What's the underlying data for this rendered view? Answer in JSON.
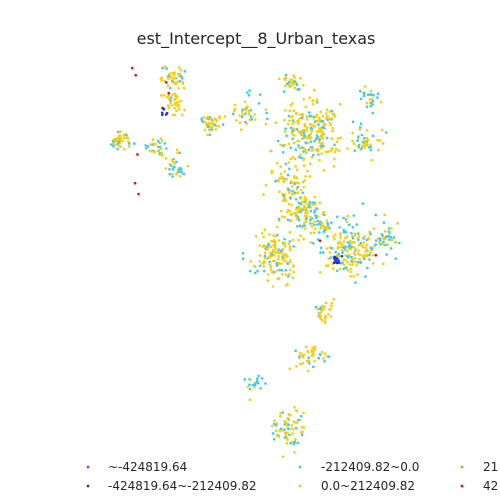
{
  "chart_data": {
    "type": "scatter",
    "title": "est_Intercept__8_Urban_texas",
    "xlabel": "",
    "ylabel": "",
    "grid": false,
    "axes_visible": false,
    "legend_placement": "bottom",
    "legend": [
      {
        "label": "~-424819.64",
        "color": "#9b30ff"
      },
      {
        "label": "-424819.64~-212409.82",
        "color": "#2b2bd9"
      },
      {
        "label": "-212409.82~0.0",
        "color": "#33ccff"
      },
      {
        "label": "0.0~212409.82",
        "color": "#ffcc00"
      },
      {
        "label": "21",
        "color": "#ff8c1a"
      },
      {
        "label": "42",
        "color": "#ff0000"
      }
    ],
    "clusters": [
      {
        "cx": 0.118,
        "cy": 0.8,
        "r": 0.025,
        "n": 40,
        "yellow": 0.7
      },
      {
        "cx": 0.222,
        "cy": 0.78,
        "r": 0.028,
        "n": 30,
        "yellow": 0.7
      },
      {
        "cx": 0.272,
        "cy": 0.725,
        "r": 0.03,
        "n": 30,
        "yellow": 0.6
      },
      {
        "cx": 0.378,
        "cy": 0.848,
        "r": 0.03,
        "n": 40,
        "yellow": 0.6
      },
      {
        "cx": 0.268,
        "cy": 0.975,
        "r": 0.04,
        "n": 45,
        "yellow": 0.8
      },
      {
        "cx": 0.27,
        "cy": 0.9,
        "r": 0.025,
        "n": 30,
        "yellow": 0.9
      },
      {
        "cx": 0.48,
        "cy": 0.88,
        "r": 0.04,
        "n": 40,
        "yellow": 0.6
      },
      {
        "cx": 0.61,
        "cy": 0.96,
        "r": 0.022,
        "n": 25,
        "yellow": 0.7
      },
      {
        "cx": 0.66,
        "cy": 0.82,
        "r": 0.08,
        "n": 240,
        "yellow": 0.7
      },
      {
        "cx": 0.82,
        "cy": 0.79,
        "r": 0.035,
        "n": 45,
        "yellow": 0.6
      },
      {
        "cx": 0.83,
        "cy": 0.92,
        "r": 0.03,
        "n": 25,
        "yellow": 0.4
      },
      {
        "cx": 0.595,
        "cy": 0.68,
        "r": 0.05,
        "n": 60,
        "yellow": 0.8
      },
      {
        "cx": 0.64,
        "cy": 0.6,
        "r": 0.06,
        "n": 120,
        "yellow": 0.7
      },
      {
        "cx": 0.56,
        "cy": 0.48,
        "r": 0.06,
        "n": 140,
        "yellow": 0.75
      },
      {
        "cx": 0.78,
        "cy": 0.5,
        "r": 0.07,
        "n": 180,
        "yellow": 0.6
      },
      {
        "cx": 0.7,
        "cy": 0.56,
        "r": 0.025,
        "n": 25,
        "yellow": 0.5
      },
      {
        "cx": 0.88,
        "cy": 0.52,
        "r": 0.035,
        "n": 40,
        "yellow": 0.4
      },
      {
        "cx": 0.7,
        "cy": 0.32,
        "r": 0.03,
        "n": 30,
        "yellow": 0.8
      },
      {
        "cx": 0.66,
        "cy": 0.2,
        "r": 0.035,
        "n": 40,
        "yellow": 0.6
      },
      {
        "cx": 0.5,
        "cy": 0.12,
        "r": 0.025,
        "n": 20,
        "yellow": 0.3
      },
      {
        "cx": 0.6,
        "cy": 0.0,
        "r": 0.05,
        "n": 70,
        "yellow": 0.7
      }
    ],
    "special_points": [
      {
        "x": 0.24,
        "y": 0.88,
        "color": "#2b2bd9",
        "n": 6
      },
      {
        "x": 0.742,
        "y": 0.47,
        "color": "#2b2bd9",
        "n": 12
      },
      {
        "x": 0.15,
        "y": 1.0,
        "color": "#ff0000",
        "n": 1
      },
      {
        "x": 0.16,
        "y": 0.98,
        "color": "#ff0000",
        "n": 1
      },
      {
        "x": 0.248,
        "y": 0.96,
        "color": "#ff0000",
        "n": 1
      },
      {
        "x": 0.255,
        "y": 0.93,
        "color": "#ff0000",
        "n": 1
      },
      {
        "x": 0.165,
        "y": 0.76,
        "color": "#ff0000",
        "n": 1
      },
      {
        "x": 0.158,
        "y": 0.68,
        "color": "#ff0000",
        "n": 1
      },
      {
        "x": 0.168,
        "y": 0.65,
        "color": "#ff0000",
        "n": 1
      },
      {
        "x": 0.85,
        "y": 0.48,
        "color": "#ff0000",
        "n": 1
      },
      {
        "x": 0.69,
        "y": 0.52,
        "color": "#ff0000",
        "n": 1
      }
    ]
  }
}
